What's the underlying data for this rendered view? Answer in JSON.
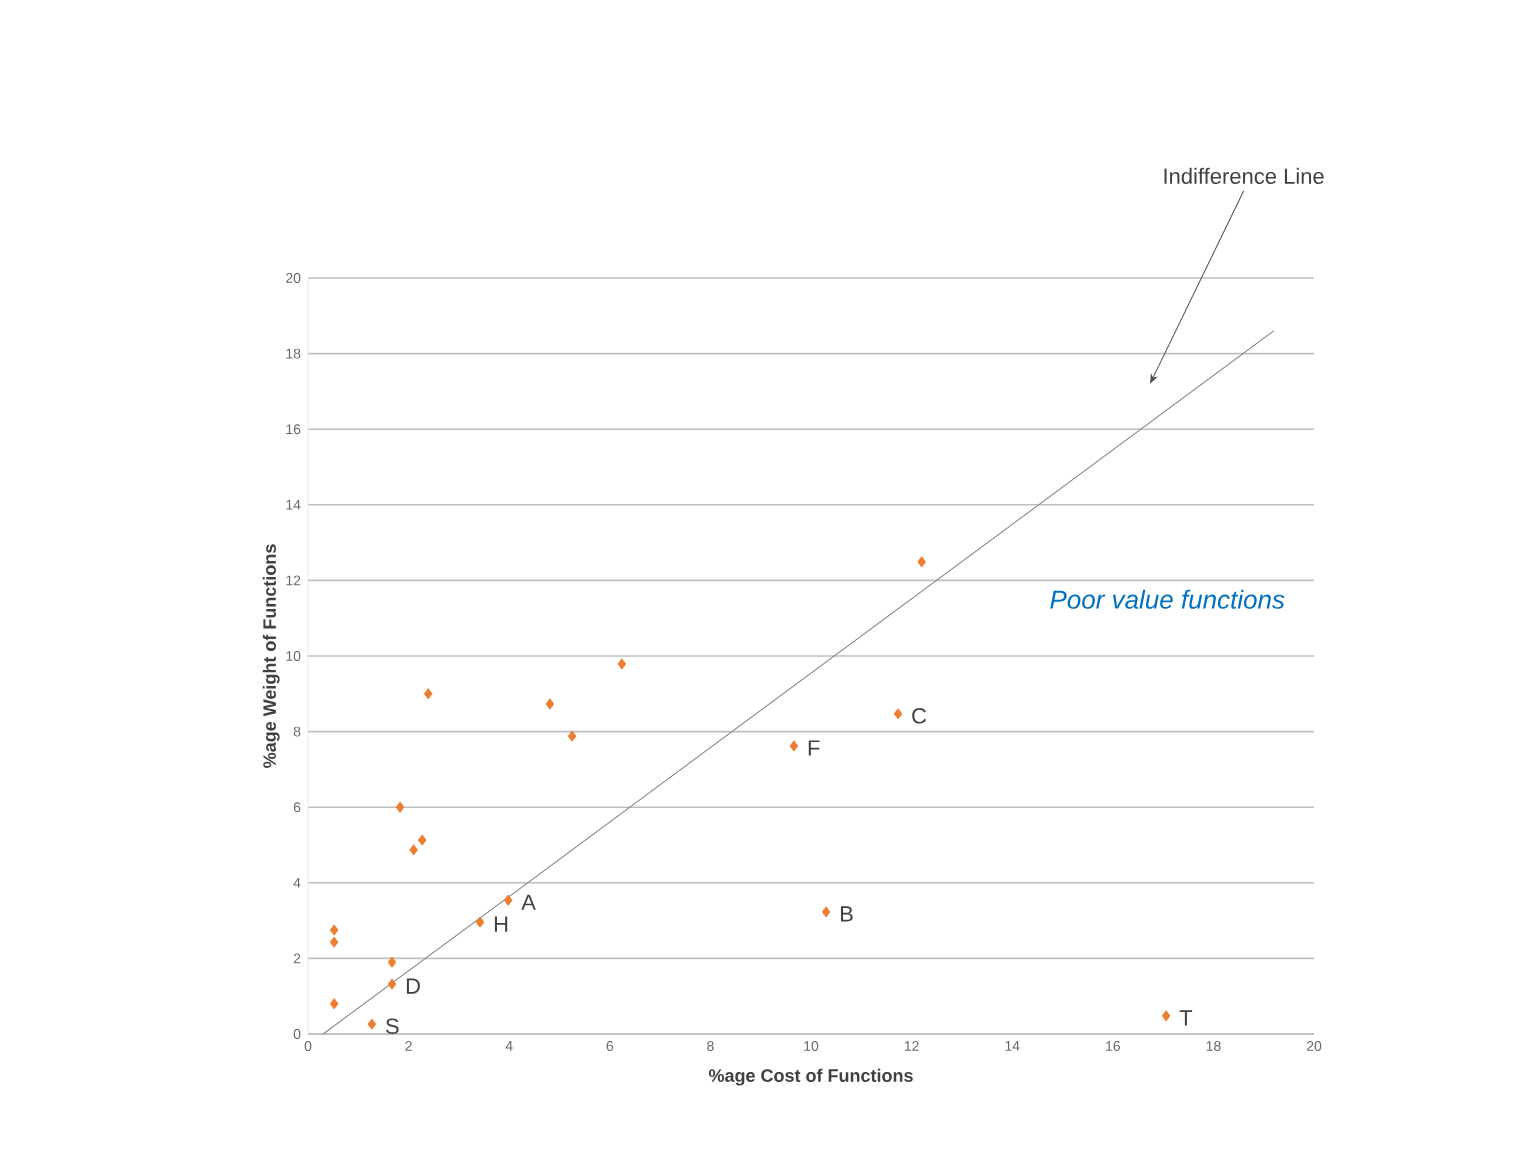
{
  "chart_data": {
    "type": "scatter",
    "xlabel": "%age Cost of Functions",
    "ylabel": "%age Weight of Functions",
    "xlim": [
      0,
      20
    ],
    "ylim": [
      0,
      20
    ],
    "xticks": [
      0,
      2,
      4,
      6,
      8,
      10,
      12,
      14,
      16,
      18,
      20
    ],
    "yticks": [
      0,
      2,
      4,
      6,
      8,
      10,
      12,
      14,
      16,
      18,
      20
    ],
    "grid": "y",
    "series": [
      {
        "marker": "diamond",
        "color": "#ed7d31",
        "x": [
          0.52,
          0.52,
          0.52,
          1.27,
          1.67,
          1.67,
          1.83,
          2.1,
          2.27,
          2.39,
          3.42,
          3.98,
          4.81,
          5.25,
          6.24,
          9.66,
          10.3,
          11.73,
          12.2,
          17.06
        ],
        "values": [
          2.75,
          2.43,
          0.8,
          0.26,
          1.9,
          1.32,
          6.0,
          4.87,
          5.13,
          9.0,
          2.96,
          3.54,
          8.73,
          7.88,
          9.79,
          7.62,
          3.23,
          8.47,
          12.49,
          0.48
        ]
      },
      {
        "type": "line",
        "color": "#808080",
        "x": [
          0.3,
          19.2
        ],
        "values": [
          0,
          18.6
        ]
      }
    ],
    "annotations": [
      {
        "text": "A",
        "x": 3.98,
        "y": 3.54
      },
      {
        "text": "B",
        "x": 10.3,
        "y": 3.23
      },
      {
        "text": "C",
        "x": 11.73,
        "y": 8.47
      },
      {
        "text": "D",
        "x": 1.67,
        "y": 1.32
      },
      {
        "text": "F",
        "x": 9.66,
        "y": 7.62
      },
      {
        "text": "H",
        "x": 3.42,
        "y": 2.96
      },
      {
        "text": "S",
        "x": 1.27,
        "y": 0.26
      },
      {
        "text": "T",
        "x": 17.06,
        "y": 0.48
      },
      "Indifference Line",
      "Poor value functions"
    ]
  }
}
